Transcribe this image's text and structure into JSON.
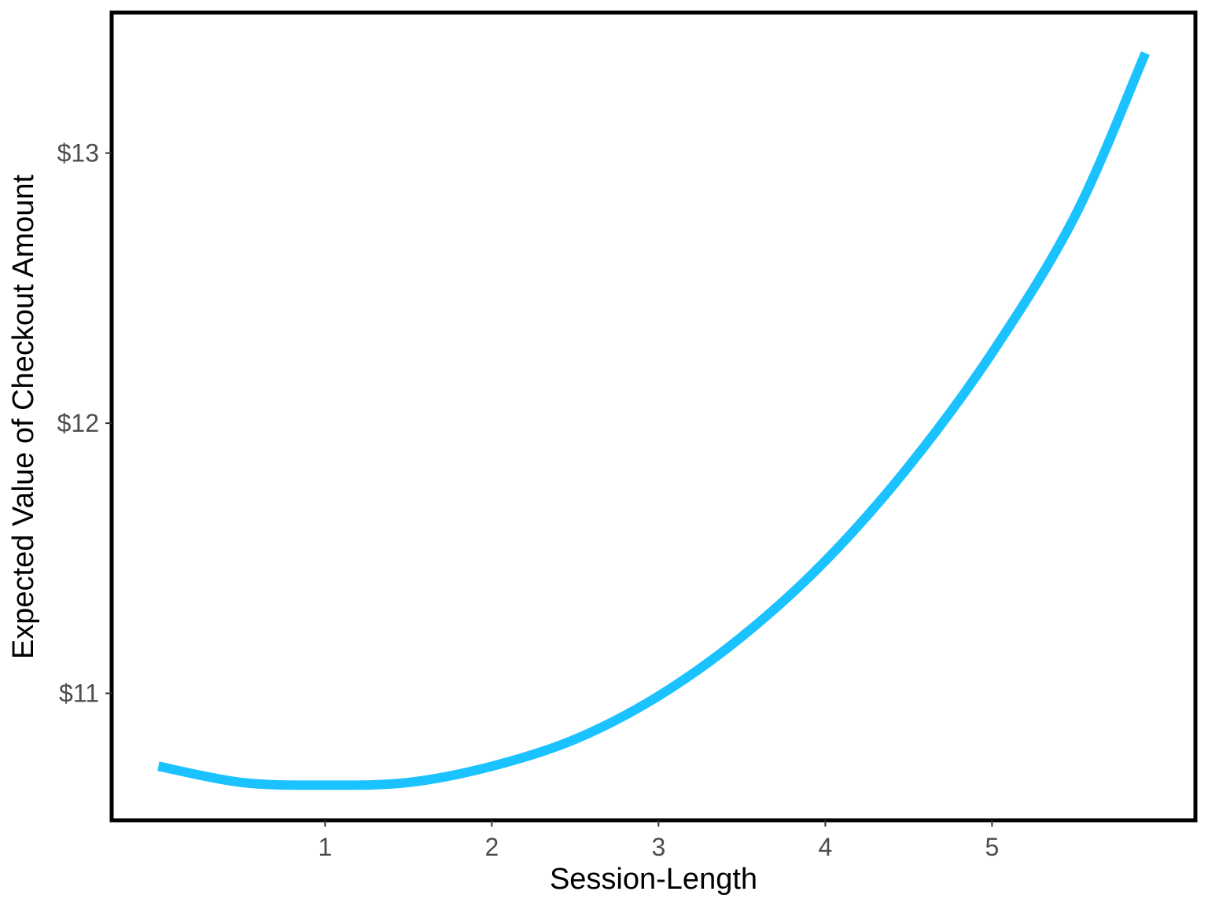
{
  "chart_data": {
    "type": "line",
    "title": "",
    "xlabel": "Session-Length",
    "ylabel": "Expected Value of Checkout Amount",
    "xlim": [
      -0.28,
      6.22
    ],
    "ylim": [
      10.53,
      13.52
    ],
    "x_ticks": [
      1,
      2,
      3,
      4,
      5
    ],
    "x_tick_labels": [
      "1",
      "2",
      "3",
      "4",
      "5"
    ],
    "y_ticks": [
      11,
      12,
      13
    ],
    "y_tick_labels": [
      "$11",
      "$12",
      "$13"
    ],
    "grid": false,
    "legend": "none",
    "series": [
      {
        "color": "#1AC2FF",
        "x": [
          0.0,
          0.5,
          1.0,
          1.5,
          2.0,
          2.5,
          3.0,
          3.5,
          4.0,
          4.5,
          5.0,
          5.5,
          5.92
        ],
        "y": [
          10.73,
          10.67,
          10.66,
          10.67,
          10.73,
          10.83,
          10.99,
          11.21,
          11.49,
          11.84,
          12.26,
          12.77,
          13.37
        ]
      }
    ]
  }
}
